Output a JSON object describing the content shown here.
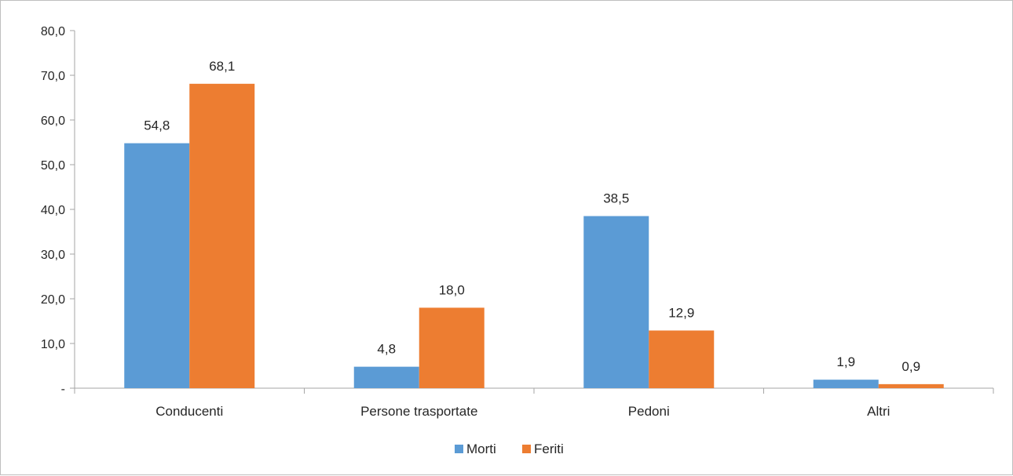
{
  "chart_data": {
    "type": "bar",
    "categories": [
      "Conducenti",
      "Persone trasportate",
      "Pedoni",
      "Altri"
    ],
    "series": [
      {
        "name": "Morti",
        "values": [
          54.8,
          4.8,
          38.5,
          1.9
        ],
        "value_labels": [
          "54,8",
          "4,8",
          "38,5",
          "1,9"
        ],
        "color": "#5b9bd5"
      },
      {
        "name": "Feriti",
        "values": [
          68.1,
          18.0,
          12.9,
          0.9
        ],
        "value_labels": [
          "68,1",
          "18,0",
          "12,9",
          "0,9"
        ],
        "color": "#ed7d31"
      }
    ],
    "ylim": [
      0,
      80
    ],
    "yticks": [
      {
        "value": 0,
        "label": "-"
      },
      {
        "value": 10,
        "label": "10,0"
      },
      {
        "value": 20,
        "label": "20,0"
      },
      {
        "value": 30,
        "label": "30,0"
      },
      {
        "value": 40,
        "label": "40,0"
      },
      {
        "value": 50,
        "label": "50,0"
      },
      {
        "value": 60,
        "label": "60,0"
      },
      {
        "value": 70,
        "label": "70,0"
      },
      {
        "value": 80,
        "label": "80,0"
      }
    ],
    "grid": false,
    "legend": "bottom",
    "axis_color": "#a6a6a6",
    "text_color": "#262626"
  }
}
